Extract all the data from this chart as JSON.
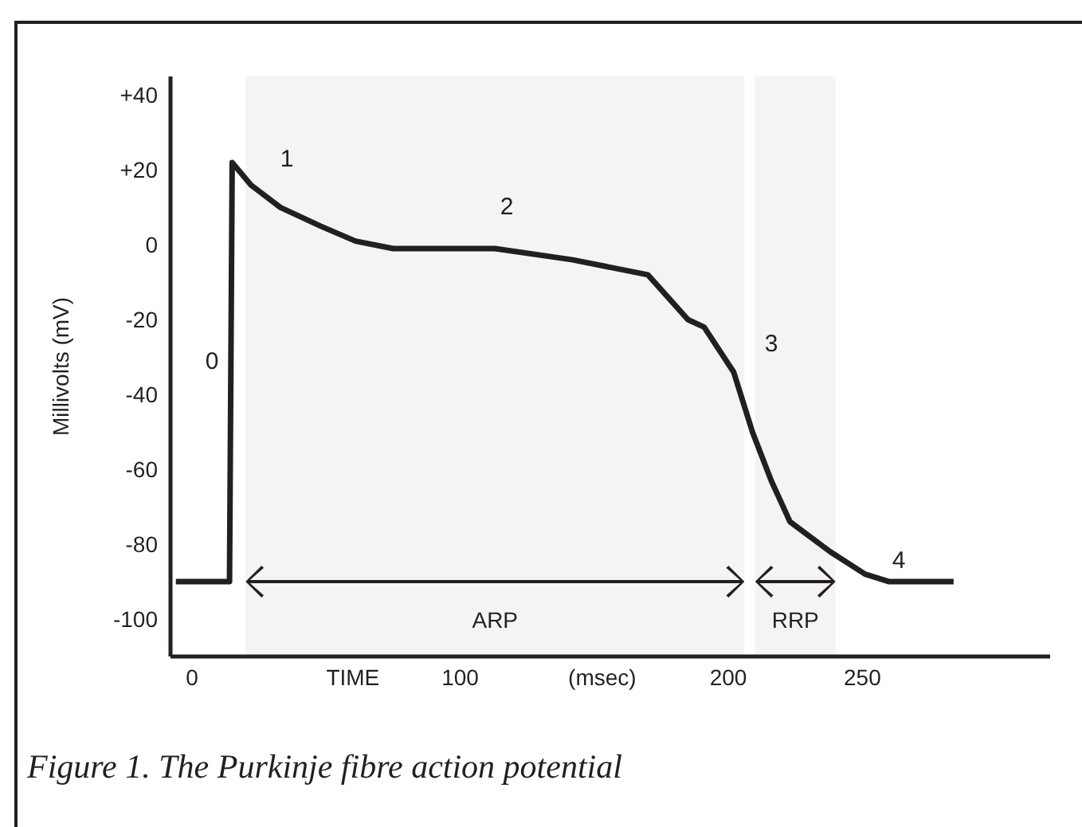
{
  "chart_data": {
    "type": "line",
    "title": "Figure 1. The Purkinje fibre action potential",
    "ylabel": "Millivolts (mV)",
    "xlim": [
      -8,
      320
    ],
    "xticks": [
      0,
      {
        "value": 60,
        "label": "TIME"
      },
      100,
      {
        "value": 153,
        "label": "(msec)"
      },
      200,
      250
    ],
    "ylim": [
      -110,
      45
    ],
    "yticks": [
      {
        "value": 40,
        "label": "+40"
      },
      {
        "value": 20,
        "label": "+20"
      },
      0,
      -20,
      -40,
      -60,
      -80,
      -100
    ],
    "x": [
      -6,
      14,
      15,
      22,
      33,
      48,
      61,
      75,
      113,
      142,
      170,
      185,
      191,
      202,
      209,
      216,
      223,
      238,
      251,
      260,
      284
    ],
    "series": [
      {
        "color": "#231f20",
        "values": [
          -90,
          -90,
          22,
          16,
          10,
          5,
          1,
          -1,
          -1,
          -4,
          -8,
          -20,
          -22,
          -34,
          -50,
          -63,
          -74,
          -82,
          -88,
          -90,
          -90
        ]
      }
    ],
    "bands": [
      {
        "axis": "x",
        "from": 20,
        "to": 206,
        "label": "ARP"
      },
      {
        "axis": "x",
        "from": 210,
        "to": 240,
        "label": "RRP"
      }
    ],
    "annotations": [
      "0",
      "1",
      "2",
      "3",
      "4"
    ],
    "line_style": "solid",
    "marker": "none",
    "grid": false
  }
}
